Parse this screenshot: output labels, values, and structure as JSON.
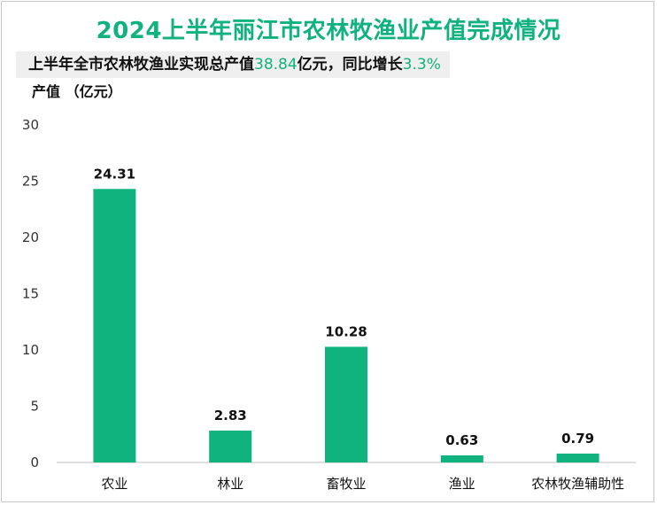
{
  "chart_data": {
    "type": "bar",
    "title": "2024上半年丽江市农林牧渔业产值完成情况",
    "subtitle": {
      "prefix": "上半年全市农林牧渔业实现总产值",
      "value1": "38.84",
      "mid": "亿元，同比增长",
      "value2": "3.3%"
    },
    "ylabel": "产值 （亿元）",
    "xlabel": "",
    "ylim": [
      0,
      30
    ],
    "yticks": [
      0,
      5,
      10,
      15,
      20,
      25,
      30
    ],
    "categories": [
      "农业",
      "林业",
      "畜牧业",
      "渔业",
      "农林牧渔辅助性"
    ],
    "values": [
      24.31,
      2.83,
      10.28,
      0.63,
      0.79
    ],
    "data_labels": [
      "24.31",
      "2.83",
      "10.28",
      "0.63",
      "0.79"
    ],
    "bar_color": "#10b27e",
    "grid": false,
    "legend": "none"
  }
}
